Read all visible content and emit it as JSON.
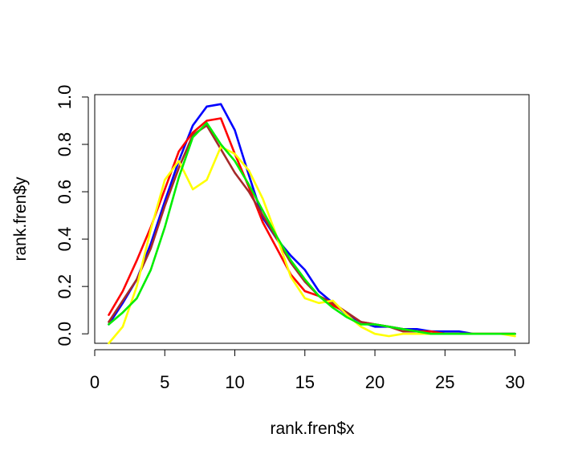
{
  "chart_data": {
    "type": "line",
    "title": "",
    "xlabel": "rank.fren$x",
    "ylabel": "rank.fren$y",
    "xlim": [
      0,
      31
    ],
    "ylim": [
      -0.04,
      1.01
    ],
    "x_ticks": [
      0,
      5,
      10,
      15,
      20,
      25,
      30
    ],
    "x_tick_labels": [
      "0",
      "5",
      "10",
      "15",
      "20",
      "25",
      "30"
    ],
    "y_ticks": [
      0.0,
      0.2,
      0.4,
      0.6,
      0.8,
      1.0
    ],
    "y_tick_labels": [
      "0.0",
      "0.2",
      "0.4",
      "0.6",
      "0.8",
      "1.0"
    ],
    "grid": false,
    "legend": "none",
    "x": [
      1,
      2,
      3,
      4,
      5,
      6,
      7,
      8,
      9,
      10,
      11,
      12,
      13,
      14,
      15,
      16,
      17,
      18,
      19,
      20,
      21,
      22,
      23,
      24,
      25,
      26,
      27,
      28,
      29,
      30
    ],
    "series": [
      {
        "color": "#0000ff",
        "values": [
          0.04,
          0.13,
          0.23,
          0.38,
          0.56,
          0.73,
          0.88,
          0.96,
          0.97,
          0.86,
          0.67,
          0.49,
          0.4,
          0.33,
          0.27,
          0.18,
          0.13,
          0.08,
          0.05,
          0.03,
          0.03,
          0.02,
          0.02,
          0.01,
          0.01,
          0.01,
          0.0,
          0.0,
          0.0,
          0.0
        ]
      },
      {
        "color": "#ff0000",
        "values": [
          0.08,
          0.18,
          0.31,
          0.45,
          0.61,
          0.77,
          0.85,
          0.9,
          0.91,
          0.76,
          0.62,
          0.47,
          0.36,
          0.25,
          0.18,
          0.16,
          0.12,
          0.09,
          0.05,
          0.04,
          0.03,
          0.02,
          0.01,
          0.01,
          0.0,
          0.0,
          0.0,
          0.0,
          0.0,
          0.0
        ]
      },
      {
        "color": "#a52a2a",
        "values": [
          0.05,
          0.14,
          0.23,
          0.36,
          0.54,
          0.7,
          0.84,
          0.88,
          0.78,
          0.68,
          0.6,
          0.5,
          0.4,
          0.3,
          0.22,
          0.16,
          0.13,
          0.09,
          0.05,
          0.04,
          0.03,
          0.01,
          0.01,
          0.0,
          0.0,
          0.0,
          0.0,
          0.0,
          0.0,
          0.0
        ]
      },
      {
        "color": "#ffff00",
        "values": [
          -0.04,
          0.03,
          0.2,
          0.44,
          0.65,
          0.73,
          0.61,
          0.65,
          0.79,
          0.76,
          0.69,
          0.57,
          0.41,
          0.24,
          0.15,
          0.13,
          0.14,
          0.08,
          0.03,
          0.0,
          -0.01,
          0.0,
          0.0,
          0.0,
          0.0,
          0.0,
          0.0,
          0.0,
          0.0,
          -0.01
        ]
      },
      {
        "color": "#00ee00",
        "values": [
          0.04,
          0.09,
          0.15,
          0.27,
          0.45,
          0.66,
          0.83,
          0.89,
          0.8,
          0.73,
          0.63,
          0.52,
          0.41,
          0.31,
          0.23,
          0.16,
          0.11,
          0.07,
          0.04,
          0.04,
          0.03,
          0.02,
          0.01,
          0.0,
          0.0,
          0.0,
          0.0,
          0.0,
          0.0,
          0.0
        ]
      }
    ]
  }
}
